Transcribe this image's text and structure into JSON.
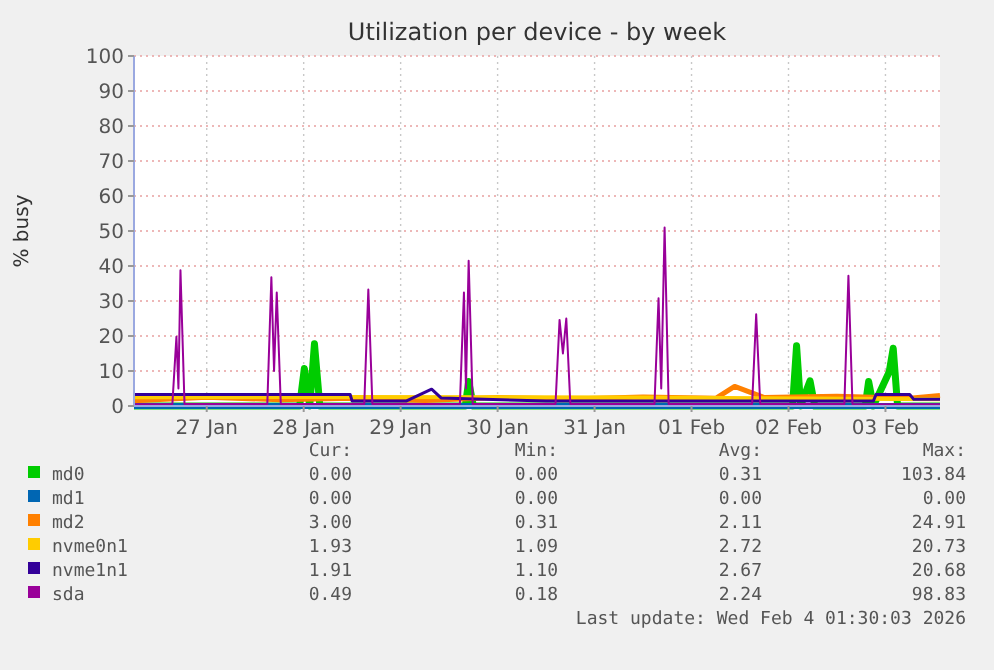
{
  "chart_data": {
    "type": "line",
    "title": "Utilization per device - by week",
    "ylabel": "% busy",
    "xlim": [
      "2026-01-26T18:00",
      "2026-02-04T01:30"
    ],
    "xticks": [
      {
        "value": "2026-01-27T12:00",
        "label": "27 Jan"
      },
      {
        "value": "2026-01-28T12:00",
        "label": "28 Jan"
      },
      {
        "value": "2026-01-29T12:00",
        "label": "29 Jan"
      },
      {
        "value": "2026-01-30T12:00",
        "label": "30 Jan"
      },
      {
        "value": "2026-01-31T12:00",
        "label": "31 Jan"
      },
      {
        "value": "2026-02-01T12:00",
        "label": "01 Feb"
      },
      {
        "value": "2026-02-02T12:00",
        "label": "02 Feb"
      },
      {
        "value": "2026-02-03T12:00",
        "label": "03 Feb"
      }
    ],
    "ylim": [
      0,
      100
    ],
    "yticks": [
      0,
      10,
      20,
      30,
      40,
      50,
      60,
      70,
      80,
      90,
      100
    ],
    "grid": true,
    "legend": "bottom",
    "marker": "none",
    "line_style": "solid",
    "series": [
      {
        "name": "md0",
        "color": "#00cc00",
        "x": [
          "2026-01-26T18:00",
          "2026-01-28T11:00",
          "2026-01-28T12:10",
          "2026-01-28T13:30",
          "2026-01-28T14:40",
          "2026-01-28T16:00",
          "2026-01-30T04:00",
          "2026-01-30T04:50",
          "2026-01-30T06:00",
          "2026-02-02T13:00",
          "2026-02-02T14:00",
          "2026-02-02T15:00",
          "2026-02-02T17:20",
          "2026-02-02T18:30",
          "2026-02-03T07:00",
          "2026-02-03T07:50",
          "2026-02-03T09:00",
          "2026-02-03T12:55",
          "2026-02-03T13:55",
          "2026-02-03T15:00",
          "2026-02-04T01:30"
        ],
        "values": [
          0,
          0,
          10.7,
          0,
          17.8,
          0,
          0,
          7,
          0,
          0,
          17.2,
          0,
          7.2,
          0,
          0,
          7,
          0,
          9.7,
          16.5,
          0,
          0
        ]
      },
      {
        "name": "md1",
        "color": "#0066b3",
        "x": [
          "2026-01-26T18:00",
          "2026-02-04T01:30"
        ],
        "values": [
          0,
          0
        ]
      },
      {
        "name": "md2",
        "color": "#ff8000",
        "x": [
          "2026-01-26T18:00",
          "2026-01-27T12:00",
          "2026-01-28T06:00",
          "2026-01-29T00:00",
          "2026-01-29T18:00",
          "2026-01-30T12:00",
          "2026-01-31T06:00",
          "2026-02-01T00:00",
          "2026-02-01T18:00",
          "2026-02-01T22:40",
          "2026-02-02T06:00",
          "2026-02-03T00:00",
          "2026-02-03T18:00",
          "2026-02-04T01:30"
        ],
        "values": [
          1.5,
          2.5,
          1.8,
          2.2,
          1.6,
          2.4,
          2,
          2.6,
          2.2,
          5.6,
          2.4,
          2.8,
          2.2,
          3
        ]
      },
      {
        "name": "nvme0n1",
        "color": "#ffcc00",
        "x": [
          "2026-01-26T18:00",
          "2026-01-29T00:00",
          "2026-02-01T00:00",
          "2026-02-04T01:30"
        ],
        "values": [
          2.5,
          2.6,
          2.4,
          1.9
        ]
      },
      {
        "name": "nvme1n1",
        "color": "#330099",
        "x": [
          "2026-01-26T18:00",
          "2026-01-28T23:30",
          "2026-01-29T00:00",
          "2026-01-29T13:20",
          "2026-01-29T19:40",
          "2026-01-29T22:00",
          "2026-01-31T00:00",
          "2026-02-03T09:00",
          "2026-02-03T09:40",
          "2026-02-03T18:00",
          "2026-02-03T19:00",
          "2026-02-04T01:30"
        ],
        "values": [
          3.3,
          3.3,
          1.4,
          1.4,
          4.8,
          2.3,
          1.4,
          1.4,
          3.3,
          3.3,
          1.9,
          1.9
        ]
      },
      {
        "name": "sda",
        "color": "#990099",
        "x": [
          "2026-01-26T18:00",
          "2026-01-27T03:30",
          "2026-01-27T04:30",
          "2026-01-27T05:00",
          "2026-01-27T05:30",
          "2026-01-27T06:30",
          "2026-01-28T03:00",
          "2026-01-28T04:00",
          "2026-01-28T04:40",
          "2026-01-28T05:20",
          "2026-01-28T06:20",
          "2026-01-29T03:00",
          "2026-01-29T04:00",
          "2026-01-29T05:00",
          "2026-01-30T02:40",
          "2026-01-30T03:40",
          "2026-01-30T04:10",
          "2026-01-30T04:50",
          "2026-01-30T05:50",
          "2026-01-31T02:20",
          "2026-01-31T03:20",
          "2026-01-31T04:10",
          "2026-01-31T05:00",
          "2026-01-31T06:00",
          "2026-02-01T02:50",
          "2026-02-01T03:50",
          "2026-02-01T04:30",
          "2026-02-01T05:20",
          "2026-02-01T06:20",
          "2026-02-02T03:00",
          "2026-02-02T04:00",
          "2026-02-02T05:00",
          "2026-02-03T01:50",
          "2026-02-03T02:50",
          "2026-02-03T03:50",
          "2026-02-04T01:30"
        ],
        "values": [
          0.5,
          0.6,
          19.8,
          5,
          38.8,
          0.6,
          0.6,
          36.8,
          10,
          32.4,
          0.6,
          0.6,
          33.3,
          0.6,
          0.6,
          32.4,
          5,
          41.5,
          0.6,
          0.6,
          24.6,
          15,
          25,
          0.6,
          0.6,
          30.8,
          5,
          51,
          0.6,
          0.6,
          26.2,
          0.6,
          0.6,
          37.2,
          0.6,
          0.5
        ]
      }
    ],
    "annotations": [
      "Cur:",
      "Min:",
      "Avg:",
      "Max:",
      "0.00",
      "0.00",
      "0.31",
      "103.84",
      "0.00",
      "0.00",
      "0.00",
      "0.00",
      "3.00",
      "0.31",
      "2.11",
      "24.91",
      "1.93",
      "1.09",
      "2.72",
      "20.73",
      "1.91",
      "1.10",
      "2.67",
      "20.68",
      "0.49",
      "0.18",
      "2.24",
      "98.83",
      "Last update: Wed Feb  4 01:30:03 2026"
    ]
  }
}
